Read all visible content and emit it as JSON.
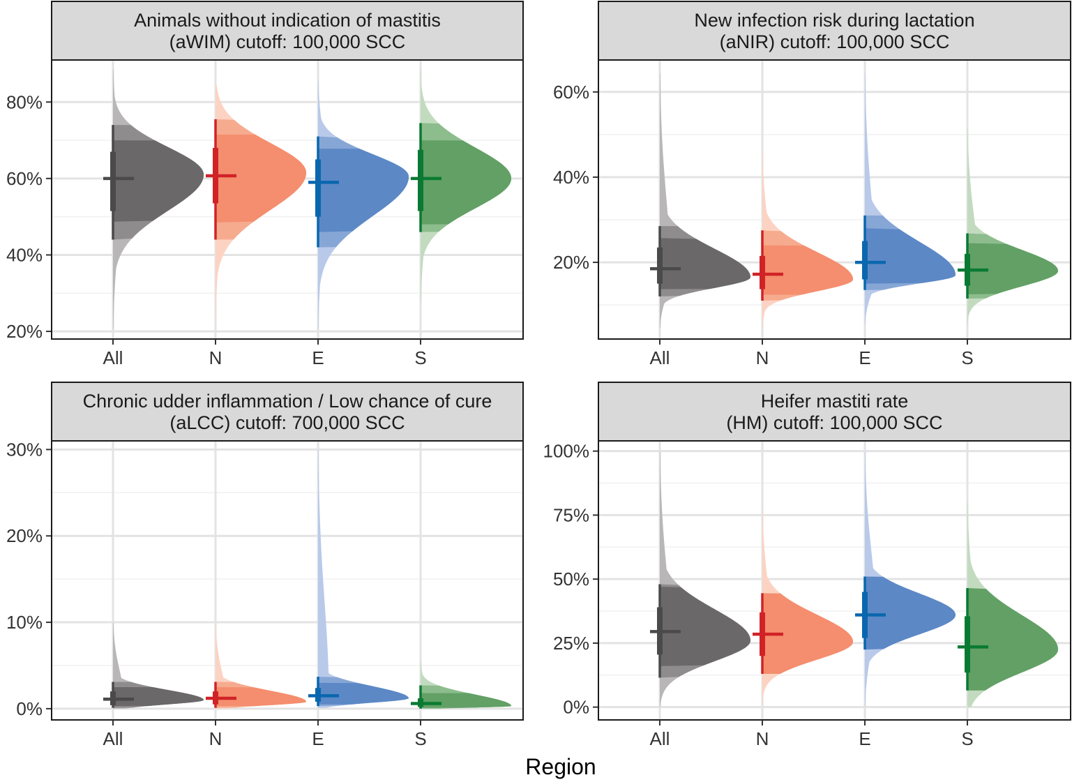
{
  "x_axis_title": "Region",
  "colors": {
    "All": {
      "dark": "#4a4a4a",
      "fill": "#6a6868",
      "mid": "#8e8c8c",
      "light": "#b8b6b6"
    },
    "N": {
      "dark": "#d02327",
      "fill": "#f48e6e",
      "mid": "#f6ab8f",
      "light": "#fcd3c2"
    },
    "E": {
      "dark": "#0a67ae",
      "fill": "#5c88c6",
      "mid": "#86a6d6",
      "light": "#b8c9ea"
    },
    "S": {
      "dark": "#0a7a32",
      "fill": "#62a065",
      "mid": "#8dbc8d",
      "light": "#c2dbbf"
    }
  },
  "chart_data": [
    {
      "type": "half-eye",
      "title_line1": "Animals without indication of mastitis",
      "title_line2": "(aWIM) cutoff: 100,000 SCC",
      "categories": [
        "All",
        "N",
        "E",
        "S"
      ],
      "xlabel": "Region",
      "ylim": [
        0.18,
        0.91
      ],
      "yticks": [
        0.2,
        0.4,
        0.6,
        0.8
      ],
      "ytick_labels": [
        "20%",
        "40%",
        "60%",
        "80%"
      ],
      "ytick_minor": [
        0.3,
        0.5,
        0.7
      ],
      "series": [
        {
          "name": "All",
          "median": 0.6,
          "q66": [
            0.515,
            0.67
          ],
          "q95": [
            0.44,
            0.74
          ],
          "q50": [
            0.545,
            0.647
          ],
          "q80": [
            0.487,
            0.7
          ],
          "q99": [
            0.415,
            0.76
          ],
          "min": 0.205,
          "max": 0.885,
          "mode": 0.61
        },
        {
          "name": "N",
          "median": 0.607,
          "q66": [
            0.535,
            0.68
          ],
          "q95": [
            0.44,
            0.755
          ],
          "q50": [
            0.566,
            0.653
          ],
          "q80": [
            0.485,
            0.715
          ],
          "q99": [
            0.41,
            0.785
          ],
          "min": 0.235,
          "max": 0.845,
          "mode": 0.615
        },
        {
          "name": "E",
          "median": 0.59,
          "q66": [
            0.5,
            0.65
          ],
          "q95": [
            0.42,
            0.71
          ],
          "q50": [
            0.55,
            0.633
          ],
          "q80": [
            0.46,
            0.678
          ],
          "q99": [
            0.395,
            0.74
          ],
          "min": 0.205,
          "max": 0.855,
          "mode": 0.605
        },
        {
          "name": "S",
          "median": 0.6,
          "q66": [
            0.515,
            0.675
          ],
          "q95": [
            0.46,
            0.745
          ],
          "q50": [
            0.53,
            0.666
          ],
          "q80": [
            0.48,
            0.7
          ],
          "q99": [
            0.44,
            0.76
          ],
          "min": 0.275,
          "max": 0.885,
          "mode": 0.6
        }
      ]
    },
    {
      "type": "half-eye",
      "title_line1": "New infection risk during lactation",
      "title_line2": "(aNIR) cutoff: 100,000 SCC",
      "categories": [
        "All",
        "N",
        "E",
        "S"
      ],
      "xlabel": "Region",
      "ylim": [
        0.02,
        0.675
      ],
      "yticks": [
        0.2,
        0.4,
        0.6
      ],
      "ytick_labels": [
        "20%",
        "40%",
        "60%"
      ],
      "ytick_minor": [
        0.1,
        0.3,
        0.5
      ],
      "series": [
        {
          "name": "All",
          "median": 0.185,
          "q66": [
            0.15,
            0.235
          ],
          "q95": [
            0.12,
            0.285
          ],
          "q50": [
            0.163,
            0.218
          ],
          "q80": [
            0.137,
            0.257
          ],
          "q99": [
            0.1,
            0.32
          ],
          "min": 0.045,
          "max": 0.645,
          "mode": 0.165
        },
        {
          "name": "N",
          "median": 0.172,
          "q66": [
            0.137,
            0.215
          ],
          "q95": [
            0.11,
            0.275
          ],
          "q50": [
            0.153,
            0.2
          ],
          "q80": [
            0.124,
            0.24
          ],
          "q99": [
            0.095,
            0.3
          ],
          "min": 0.045,
          "max": 0.46,
          "mode": 0.16
        },
        {
          "name": "E",
          "median": 0.2,
          "q66": [
            0.16,
            0.25
          ],
          "q95": [
            0.135,
            0.31
          ],
          "q50": [
            0.18,
            0.245
          ],
          "q80": [
            0.15,
            0.28
          ],
          "q99": [
            0.115,
            0.33
          ],
          "min": 0.055,
          "max": 0.645,
          "mode": 0.17
        },
        {
          "name": "S",
          "median": 0.182,
          "q66": [
            0.145,
            0.22
          ],
          "q95": [
            0.115,
            0.268
          ],
          "q50": [
            0.145,
            0.22
          ],
          "q80": [
            0.125,
            0.245
          ],
          "q99": [
            0.1,
            0.28
          ],
          "min": 0.055,
          "max": 0.515,
          "mode": 0.18
        }
      ]
    },
    {
      "type": "half-eye",
      "title_line1": "Chronic udder inflammation / Low chance of cure",
      "title_line2": "(aLCC) cutoff: 700,000 SCC",
      "categories": [
        "All",
        "N",
        "E",
        "S"
      ],
      "xlabel": "Region",
      "ylim": [
        -0.013,
        0.31
      ],
      "yticks": [
        0,
        0.1,
        0.2,
        0.3
      ],
      "ytick_labels": [
        "0%",
        "10%",
        "20%",
        "30%"
      ],
      "ytick_minor": [
        0.05,
        0.15,
        0.25
      ],
      "series": [
        {
          "name": "All",
          "median": 0.011,
          "q66": [
            0.004,
            0.02
          ],
          "q95": [
            0.001,
            0.031
          ],
          "q50": [
            0.007,
            0.017
          ],
          "q80": [
            0.003,
            0.025
          ],
          "q99": [
            0.0,
            0.035
          ],
          "min": 0.0,
          "max": 0.1,
          "mode": 0.01
        },
        {
          "name": "N",
          "median": 0.012,
          "q66": [
            0.005,
            0.02
          ],
          "q95": [
            0.001,
            0.031
          ],
          "q50": [
            0.008,
            0.017
          ],
          "q80": [
            0.003,
            0.025
          ],
          "q99": [
            0.0,
            0.035
          ],
          "min": 0.0,
          "max": 0.097,
          "mode": 0.008
        },
        {
          "name": "E",
          "median": 0.015,
          "q66": [
            0.008,
            0.024
          ],
          "q95": [
            0.003,
            0.037
          ],
          "q50": [
            0.01,
            0.02
          ],
          "q80": [
            0.005,
            0.03
          ],
          "q99": [
            0.002,
            0.04
          ],
          "min": 0.001,
          "max": 0.3,
          "mode": 0.012
        },
        {
          "name": "S",
          "median": 0.006,
          "q66": [
            0.002,
            0.012
          ],
          "q95": [
            0.0,
            0.027
          ],
          "q50": [
            0.004,
            0.01
          ],
          "q80": [
            0.001,
            0.018
          ],
          "q99": [
            0.0,
            0.03
          ],
          "min": 0.0,
          "max": 0.055,
          "mode": 0.003
        }
      ]
    },
    {
      "type": "half-eye",
      "title_line1": "Heifer mastiti rate",
      "title_line2": "(HM) cutoff: 100,000 SCC",
      "categories": [
        "All",
        "N",
        "E",
        "S"
      ],
      "xlabel": "Region",
      "ylim": [
        -0.05,
        1.04
      ],
      "yticks": [
        0,
        0.25,
        0.5,
        0.75,
        1.0
      ],
      "ytick_labels": [
        "0%",
        "25%",
        "50%",
        "75%",
        "100%"
      ],
      "ytick_minor": [
        0.125,
        0.375,
        0.625,
        0.875
      ],
      "series": [
        {
          "name": "All",
          "median": 0.295,
          "q66": [
            0.205,
            0.39
          ],
          "q95": [
            0.115,
            0.48
          ],
          "q50": [
            0.22,
            0.4
          ],
          "q80": [
            0.16,
            0.47
          ],
          "q99": [
            0.11,
            0.5
          ],
          "min": 0.0,
          "max": 1.0,
          "mode": 0.26
        },
        {
          "name": "N",
          "median": 0.285,
          "q66": [
            0.2,
            0.37
          ],
          "q95": [
            0.13,
            0.445
          ],
          "q50": [
            0.225,
            0.37
          ],
          "q80": [
            0.13,
            0.445
          ],
          "q99": [
            0.1,
            0.48
          ],
          "min": 0.0,
          "max": 0.775,
          "mode": 0.255
        },
        {
          "name": "E",
          "median": 0.36,
          "q66": [
            0.27,
            0.45
          ],
          "q95": [
            0.225,
            0.51
          ],
          "q50": [
            0.29,
            0.445
          ],
          "q80": [
            0.225,
            0.51
          ],
          "q99": [
            0.2,
            0.53
          ],
          "min": 0.0,
          "max": 1.0,
          "mode": 0.36
        },
        {
          "name": "S",
          "median": 0.235,
          "q66": [
            0.135,
            0.355
          ],
          "q95": [
            0.065,
            0.465
          ],
          "q50": [
            0.135,
            0.355
          ],
          "q80": [
            0.065,
            0.465
          ],
          "q99": [
            0.03,
            0.49
          ],
          "min": 0.0,
          "max": 0.8,
          "mode": 0.225
        }
      ]
    }
  ]
}
